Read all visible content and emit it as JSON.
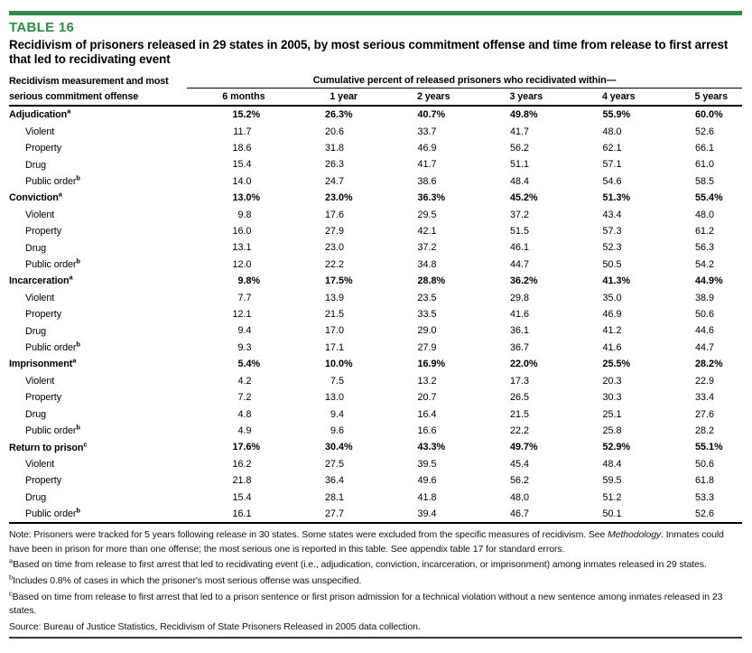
{
  "colors": {
    "accent_green": "#2F8C4A",
    "bottom_rule": "#3a3a3a"
  },
  "page": {
    "table_label": "TABLE 16",
    "title": "Recidivism of prisoners released in 29 states in 2005, by most serious commitment offense and time from release to first arrest that led to recidivating event"
  },
  "table": {
    "stub_header": "Recidivism measurement and most serious commitment offense",
    "spanner": "Cumulative percent of released prisoners who recidivated within—",
    "columns": [
      "6 months",
      "1 year",
      "2 years",
      "3 years",
      "4 years",
      "5 years"
    ],
    "sections": [
      {
        "label": "Adjudication",
        "sup": "a",
        "values": [
          "15.2%",
          "26.3%",
          "40.7%",
          "49.8%",
          "55.9%",
          "60.0%"
        ],
        "rows": [
          {
            "label": "Violent",
            "sup": "",
            "values": [
              "11.7",
              "20.6",
              "33.7",
              "41.7",
              "48.0",
              "52.6"
            ]
          },
          {
            "label": "Property",
            "sup": "",
            "values": [
              "18.6",
              "31.8",
              "46.9",
              "56.2",
              "62.1",
              "66.1"
            ]
          },
          {
            "label": "Drug",
            "sup": "",
            "values": [
              "15.4",
              "26.3",
              "41.7",
              "51.1",
              "57.1",
              "61.0"
            ]
          },
          {
            "label": "Public order",
            "sup": "b",
            "values": [
              "14.0",
              "24.7",
              "38.6",
              "48.4",
              "54.6",
              "58.5"
            ]
          }
        ]
      },
      {
        "label": "Conviction",
        "sup": "a",
        "values": [
          "13.0%",
          "23.0%",
          "36.3%",
          "45.2%",
          "51.3%",
          "55.4%"
        ],
        "rows": [
          {
            "label": "Violent",
            "sup": "",
            "values": [
              "9.8",
              "17.6",
              "29.5",
              "37.2",
              "43.4",
              "48.0"
            ]
          },
          {
            "label": "Property",
            "sup": "",
            "values": [
              "16.0",
              "27.9",
              "42.1",
              "51.5",
              "57.3",
              "61.2"
            ]
          },
          {
            "label": "Drug",
            "sup": "",
            "values": [
              "13.1",
              "23.0",
              "37.2",
              "46.1",
              "52.3",
              "56.3"
            ]
          },
          {
            "label": "Public order",
            "sup": "b",
            "values": [
              "12.0",
              "22.2",
              "34.8",
              "44.7",
              "50.5",
              "54.2"
            ]
          }
        ]
      },
      {
        "label": "Incarceration",
        "sup": "a",
        "values": [
          "9.8%",
          "17.5%",
          "28.8%",
          "36.2%",
          "41.3%",
          "44.9%"
        ],
        "rows": [
          {
            "label": "Violent",
            "sup": "",
            "values": [
              "7.7",
              "13.9",
              "23.5",
              "29.8",
              "35.0",
              "38.9"
            ]
          },
          {
            "label": "Property",
            "sup": "",
            "values": [
              "12.1",
              "21.5",
              "33.5",
              "41.6",
              "46.9",
              "50.6"
            ]
          },
          {
            "label": "Drug",
            "sup": "",
            "values": [
              "9.4",
              "17.0",
              "29.0",
              "36.1",
              "41.2",
              "44.6"
            ]
          },
          {
            "label": "Public order",
            "sup": "b",
            "values": [
              "9.3",
              "17.1",
              "27.9",
              "36.7",
              "41.6",
              "44.7"
            ]
          }
        ]
      },
      {
        "label": "Imprisonment",
        "sup": "a",
        "values": [
          "5.4%",
          "10.0%",
          "16.9%",
          "22.0%",
          "25.5%",
          "28.2%"
        ],
        "rows": [
          {
            "label": "Violent",
            "sup": "",
            "values": [
              "4.2",
              "7.5",
              "13.2",
              "17.3",
              "20.3",
              "22.9"
            ]
          },
          {
            "label": "Property",
            "sup": "",
            "values": [
              "7.2",
              "13.0",
              "20.7",
              "26.5",
              "30.3",
              "33.4"
            ]
          },
          {
            "label": "Drug",
            "sup": "",
            "values": [
              "4.8",
              "9.4",
              "16.4",
              "21.5",
              "25.1",
              "27.6"
            ]
          },
          {
            "label": "Public order",
            "sup": "b",
            "values": [
              "4.9",
              "9.6",
              "16.6",
              "22.2",
              "25.8",
              "28.2"
            ]
          }
        ]
      },
      {
        "label": "Return to prison",
        "sup": "c",
        "values": [
          "17.6%",
          "30.4%",
          "43.3%",
          "49.7%",
          "52.9%",
          "55.1%"
        ],
        "rows": [
          {
            "label": "Violent",
            "sup": "",
            "values": [
              "16.2",
              "27.5",
              "39.5",
              "45.4",
              "48.4",
              "50.6"
            ]
          },
          {
            "label": "Property",
            "sup": "",
            "values": [
              "21.8",
              "36.4",
              "49.6",
              "56.2",
              "59.5",
              "61.8"
            ]
          },
          {
            "label": "Drug",
            "sup": "",
            "values": [
              "15.4",
              "28.1",
              "41.8",
              "48.0",
              "51.2",
              "53.3"
            ]
          },
          {
            "label": "Public order",
            "sup": "b",
            "values": [
              "16.1",
              "27.7",
              "39.4",
              "46.7",
              "50.1",
              "52.6"
            ]
          }
        ]
      }
    ]
  },
  "notes": {
    "items": [
      {
        "marker": "",
        "parts": [
          {
            "t": "Note: Prisoners were tracked for 5 years following release in 30 states. Some states were excluded from the specific measures of recidivism. See "
          },
          {
            "t": "Methodology",
            "italic": true
          },
          {
            "t": ". Inmates could have been in prison for more than one offense; the most serious one is reported in this table. See appendix table 17 for standard errors."
          }
        ]
      },
      {
        "marker": "a",
        "parts": [
          {
            "t": "Based on time from release to first arrest that led to recidivating event (i.e., adjudication, conviction, incarceration, or imprisonment) among inmates released in 29 states."
          }
        ]
      },
      {
        "marker": "b",
        "parts": [
          {
            "t": "Includes 0.8% of cases in which the prisoner's most serious offense was unspecified."
          }
        ]
      },
      {
        "marker": "c",
        "parts": [
          {
            "t": "Based on time from release to first arrest that led to a prison sentence or first prison admission for a technical violation without a new sentence among inmates released in 23 states."
          }
        ]
      },
      {
        "marker": "",
        "parts": [
          {
            "t": "Source: Bureau of Justice Statistics, Recidivism of State Prisoners Released in 2005 data collection."
          }
        ]
      }
    ]
  }
}
